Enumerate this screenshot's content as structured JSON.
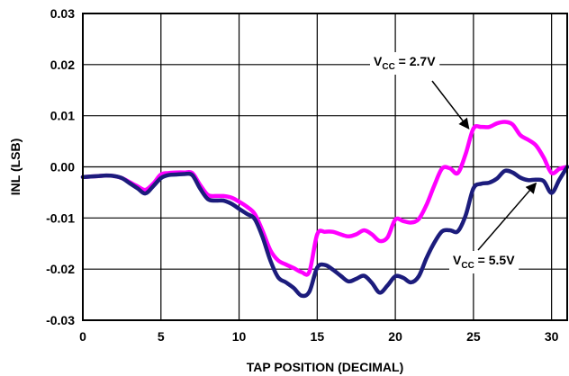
{
  "chart_data": {
    "type": "line",
    "xlabel": "TAP POSITION (DECIMAL)",
    "ylabel": "INL (LSB)",
    "xlim": [
      0,
      31
    ],
    "ylim": [
      -0.03,
      0.03
    ],
    "grid": true,
    "x_ticks": [
      0,
      5,
      10,
      15,
      20,
      25,
      30
    ],
    "x_tick_labels": [
      "0",
      "5",
      "10",
      "15",
      "20",
      "25",
      "30"
    ],
    "y_ticks": [
      0.03,
      0.02,
      0.01,
      0.0,
      -0.01,
      -0.02,
      -0.03
    ],
    "y_tick_labels": [
      "0.03",
      "0.02",
      "0.01",
      "0.00",
      "-0.01",
      "-0.02",
      "-0.03"
    ],
    "series": [
      {
        "name": "VCC = 2.7V",
        "color": "#ff00ff",
        "x": [
          0,
          0.5,
          1,
          1.5,
          2,
          2.5,
          3,
          3.5,
          4,
          4.5,
          5,
          5.5,
          6,
          6.5,
          7,
          7.5,
          8,
          8.5,
          9,
          9.5,
          10,
          10.5,
          11,
          11.5,
          12,
          12.5,
          13,
          13.5,
          14,
          14.5,
          15,
          15.5,
          16,
          16.5,
          17,
          17.5,
          18,
          18.5,
          19,
          19.5,
          20,
          20.5,
          21,
          21.5,
          22,
          22.5,
          23,
          23.5,
          24,
          24.5,
          25,
          25.5,
          26,
          26.5,
          27,
          27.5,
          28,
          28.5,
          29,
          29.5,
          30,
          30.5,
          31
        ],
        "values": [
          -0.002,
          -0.0019,
          -0.0018,
          -0.0017,
          -0.0018,
          -0.0022,
          -0.003,
          -0.0038,
          -0.0045,
          -0.0033,
          -0.0015,
          -0.0012,
          -0.0011,
          -0.0011,
          -0.0012,
          -0.0035,
          -0.0055,
          -0.0057,
          -0.0057,
          -0.006,
          -0.0068,
          -0.0078,
          -0.0092,
          -0.0125,
          -0.0163,
          -0.0183,
          -0.0191,
          -0.0198,
          -0.0206,
          -0.0205,
          -0.0132,
          -0.0127,
          -0.0127,
          -0.0132,
          -0.0136,
          -0.0132,
          -0.0124,
          -0.0132,
          -0.0145,
          -0.0138,
          -0.0103,
          -0.0106,
          -0.0109,
          -0.0102,
          -0.0074,
          -0.0036,
          -0.0003,
          -0.0003,
          -0.0012,
          0.0025,
          0.0075,
          0.0078,
          0.0078,
          0.0085,
          0.0088,
          0.0083,
          0.0062,
          0.0053,
          0.0042,
          0.0018,
          -0.0012,
          -0.0004,
          0.0
        ]
      },
      {
        "name": "VCC = 5.5V",
        "color": "#1c1c7c",
        "x": [
          0,
          0.5,
          1,
          1.5,
          2,
          2.5,
          3,
          3.5,
          4,
          4.5,
          5,
          5.5,
          6,
          6.5,
          7,
          7.5,
          8,
          8.5,
          9,
          9.5,
          10,
          10.5,
          11,
          11.5,
          12,
          12.5,
          13,
          13.5,
          14,
          14.5,
          15,
          15.5,
          16,
          16.5,
          17,
          17.5,
          18,
          18.5,
          19,
          19.5,
          20,
          20.5,
          21,
          21.5,
          22,
          22.5,
          23,
          23.5,
          24,
          24.5,
          25,
          25.5,
          26,
          26.5,
          27,
          27.5,
          28,
          28.5,
          29,
          29.5,
          30,
          30.5,
          31
        ],
        "values": [
          -0.002,
          -0.0019,
          -0.0018,
          -0.0017,
          -0.0018,
          -0.0022,
          -0.0032,
          -0.0042,
          -0.0052,
          -0.0038,
          -0.0022,
          -0.0016,
          -0.0015,
          -0.0014,
          -0.0016,
          -0.0042,
          -0.0063,
          -0.0066,
          -0.0066,
          -0.0072,
          -0.0082,
          -0.0092,
          -0.0102,
          -0.0137,
          -0.0183,
          -0.0216,
          -0.0226,
          -0.0237,
          -0.0252,
          -0.0244,
          -0.0197,
          -0.0192,
          -0.0201,
          -0.0213,
          -0.0224,
          -0.0219,
          -0.0213,
          -0.0227,
          -0.0246,
          -0.0232,
          -0.0214,
          -0.0217,
          -0.0226,
          -0.0214,
          -0.0178,
          -0.0148,
          -0.0126,
          -0.0124,
          -0.0126,
          -0.0095,
          -0.0042,
          -0.0033,
          -0.0031,
          -0.0023,
          -0.0008,
          -0.0011,
          -0.0021,
          -0.0026,
          -0.0025,
          -0.0028,
          -0.0051,
          -0.0025,
          0.0
        ]
      }
    ],
    "annotations": [
      {
        "base": "V",
        "sub": "CC",
        "rest": " = 2.7V",
        "series": "VCC = 2.7V"
      },
      {
        "base": "V",
        "sub": "CC",
        "rest": " = 5.5V",
        "series": "VCC = 5.5V"
      }
    ]
  }
}
